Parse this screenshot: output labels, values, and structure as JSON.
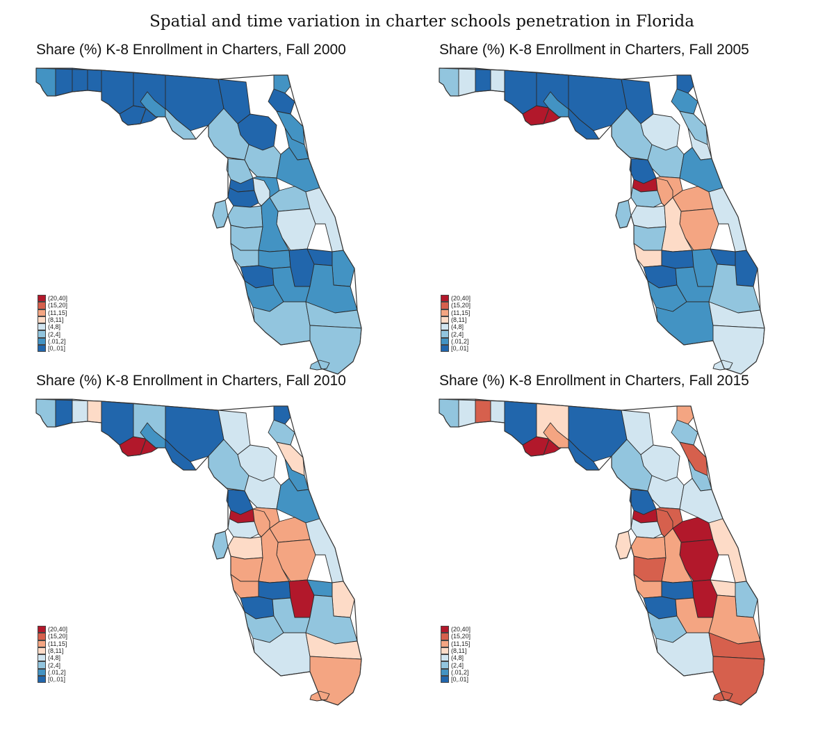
{
  "title": "Spatial and time variation in charter schools penetration in Florida",
  "colors": {
    "(20,40]": "#b2182b",
    "(15,20]": "#d6604d",
    "(11,15]": "#f4a582",
    "(8,11]": "#fddbc7",
    "(4,8]": "#d1e5f0",
    "(2,4]": "#92c5de",
    "(.01,2]": "#4393c3",
    "[0,.01]": "#2166ac"
  },
  "legend": [
    "(20,40]",
    "(15,20]",
    "(11,15]",
    "(8,11]",
    "(4,8]",
    "(2,4]",
    "(.01,2]",
    "[0,.01]"
  ],
  "panels": [
    {
      "title": "Share (%) K-8 Enrollment in Charters, Fall 2000",
      "regions": {
        "escambia": "(.01,2]",
        "santarosa": "[0,.01]",
        "okaloosa": "[0,.01]",
        "walton": "[0,.01]",
        "bay": "[0,.01]",
        "gulf": "[0,.01]",
        "franklin": "[0,.01]",
        "bigbend": "[0,.01]",
        "leon": "(.01,2]",
        "taylor": "(2,4]",
        "suwannee": "[0,.01]",
        "alachua": "[0,.01]",
        "nassau": "(.01,2]",
        "duval": "[0,.01]",
        "stjohns": "(.01,2]",
        "flagler": "(.01,2]",
        "marion": "(2,4]",
        "levy": "(2,4]",
        "lake": "(.01,2]",
        "volusia": "(.01,2]",
        "citrus": "(2,4]",
        "hernando": "[0,.01]",
        "sumter": "(4,8]",
        "pasco": "[0,.01]",
        "pinellas": "(2,4]",
        "hillsborough": "(2,4]",
        "polk": "(.01,2]",
        "orange": "(2,4]",
        "osceola": "(4,8]",
        "brevard": "(4,8]",
        "manatee": "(2,4]",
        "sarasota": "(2,4]",
        "hardee": "(.01,2]",
        "highlands": "[0,.01]",
        "okeechobee": "[0,.01]",
        "stlucie": "(.01,2]",
        "charlotte": "[0,.01]",
        "lee": "(.01,2]",
        "glades": "(.01,2]",
        "palmbeach": "(.01,2]",
        "collier": "(2,4]",
        "broward": "(2,4]",
        "dade": "(2,4]",
        "keys": "(2,4]"
      }
    },
    {
      "title": "Share (%) K-8 Enrollment in Charters, Fall 2005",
      "regions": {
        "escambia": "(2,4]",
        "santarosa": "(4,8]",
        "okaloosa": "[0,.01]",
        "walton": "(4,8]",
        "bay": "[0,.01]",
        "gulf": "(20,40]",
        "franklin": "[0,.01]",
        "bigbend": "[0,.01]",
        "leon": "(.01,2]",
        "taylor": "[0,.01]",
        "suwannee": "[0,.01]",
        "alachua": "(4,8]",
        "nassau": "[0,.01]",
        "duval": "(.01,2]",
        "stjohns": "(2,4]",
        "flagler": "(4,8]",
        "marion": "(2,4]",
        "levy": "(2,4]",
        "lake": "(11,15]",
        "volusia": "(.01,2]",
        "citrus": "[0,.01]",
        "hernando": "(20,40]",
        "sumter": "(11,15]",
        "pasco": "(2,4]",
        "pinellas": "(2,4]",
        "hillsborough": "(4,8]",
        "polk": "(8,11]",
        "orange": "(11,15]",
        "osceola": "(11,15]",
        "brevard": "(4,8]",
        "manatee": "(2,4]",
        "sarasota": "(8,11]",
        "hardee": "[0,.01]",
        "highlands": "(.01,2]",
        "okeechobee": "[0,.01]",
        "stlucie": "[0,.01]",
        "charlotte": "[0,.01]",
        "lee": "(.01,2]",
        "glades": "(.01,2]",
        "palmbeach": "(2,4]",
        "collier": "(.01,2]",
        "broward": "(4,8]",
        "dade": "(4,8]",
        "keys": "(4,8]"
      }
    },
    {
      "title": "Share (%) K-8 Enrollment in Charters, Fall 2010",
      "regions": {
        "escambia": "(2,4]",
        "santarosa": "[0,.01]",
        "okaloosa": "(4,8]",
        "walton": "(8,11]",
        "bay": "[0,.01]",
        "gulf": "(20,40]",
        "franklin": "(2,4]",
        "bigbend": "[0,.01]",
        "leon": "(.01,2]",
        "taylor": "[0,.01]",
        "suwannee": "(4,8]",
        "alachua": "(4,8]",
        "nassau": "[0,.01]",
        "duval": "(2,4]",
        "stjohns": "(8,11]",
        "flagler": "(.01,2]",
        "marion": "(4,8]",
        "levy": "(2,4]",
        "lake": "(11,15]",
        "volusia": "(.01,2]",
        "citrus": "[0,.01]",
        "hernando": "(20,40]",
        "sumter": "(11,15]",
        "pasco": "(4,8]",
        "pinellas": "(2,4]",
        "hillsborough": "(8,11]",
        "polk": "(11,15]",
        "orange": "(11,15]",
        "osceola": "(11,15]",
        "brevard": "(4,8]",
        "manatee": "(11,15]",
        "sarasota": "(11,15]",
        "hardee": "[0,.01]",
        "highlands": "(20,40]",
        "okeechobee": "(.01,2]",
        "stlucie": "(8,11]",
        "charlotte": "[0,.01]",
        "lee": "(2,4]",
        "glades": "(2,4]",
        "palmbeach": "(2,4]",
        "collier": "(4,8]",
        "broward": "(8,11]",
        "dade": "(11,15]",
        "keys": "(11,15]"
      }
    },
    {
      "title": "Share (%) K-8 Enrollment in Charters, Fall 2015",
      "regions": {
        "escambia": "(2,4]",
        "santarosa": "(4,8]",
        "okaloosa": "(15,20]",
        "walton": "(4,8]",
        "bay": "[0,.01]",
        "gulf": "(20,40]",
        "franklin": "(8,11]",
        "bigbend": "[0,.01]",
        "leon": "(11,15]",
        "taylor": "[0,.01]",
        "suwannee": "(4,8]",
        "alachua": "(4,8]",
        "nassau": "(11,15]",
        "duval": "(2,4]",
        "stjohns": "(15,20]",
        "flagler": "(2,4]",
        "marion": "(4,8]",
        "levy": "(2,4]",
        "lake": "(15,20]",
        "volusia": "(4,8]",
        "citrus": "[0,.01]",
        "hernando": "(20,40]",
        "sumter": "(15,20]",
        "pasco": "(4,8]",
        "pinellas": "(8,11]",
        "hillsborough": "(11,15]",
        "polk": "(11,15]",
        "orange": "(20,40]",
        "osceola": "(20,40]",
        "brevard": "(8,11]",
        "manatee": "(15,20]",
        "sarasota": "(11,15]",
        "hardee": "[0,.01]",
        "highlands": "(20,40]",
        "okeechobee": "(8,11]",
        "stlucie": "(2,4]",
        "charlotte": "[0,.01]",
        "lee": "(2,4]",
        "glades": "(11,15]",
        "palmbeach": "(11,15]",
        "collier": "(4,8]",
        "broward": "(15,20]",
        "dade": "(15,20]",
        "keys": "(15,20]"
      }
    }
  ]
}
